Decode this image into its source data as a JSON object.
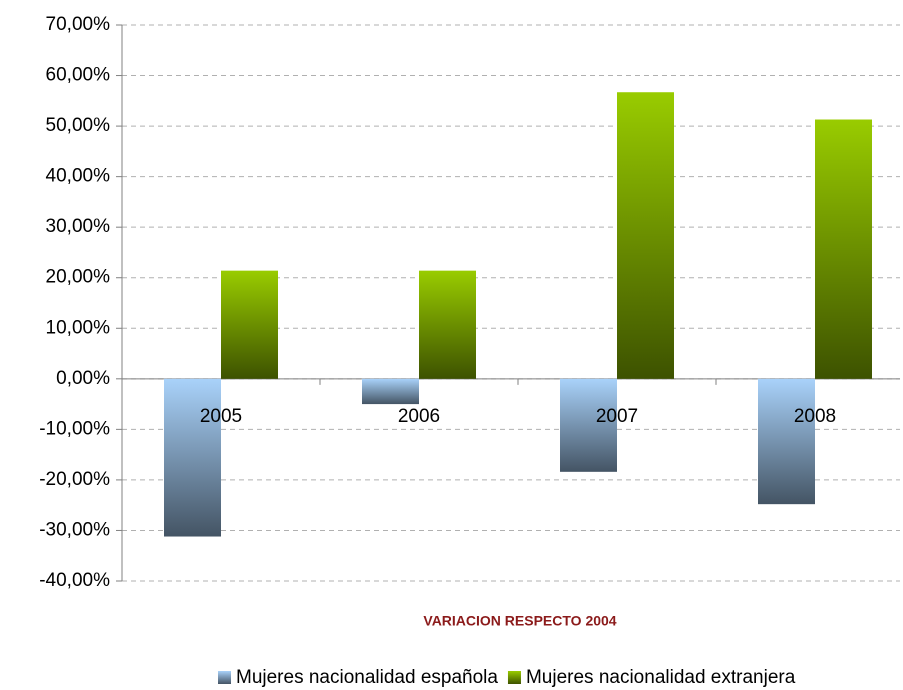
{
  "chart_data": {
    "type": "bar",
    "title": "VARIACION RESPECTO 2004",
    "categories": [
      "2005",
      "2006",
      "2007",
      "2008"
    ],
    "series": [
      {
        "name": "Mujeres nacionalidad española",
        "color": "#a9d2fa",
        "values": [
          -31.2,
          -5,
          -18.4,
          -24.8
        ]
      },
      {
        "name": "Mujeres nacionalidad extranjera",
        "color": "#99cc00",
        "values": [
          21.4,
          21.4,
          56.7,
          51.3
        ]
      }
    ],
    "ylim": [
      -40,
      70
    ],
    "yticks": [
      {
        "value": -40,
        "label": "-40,00%"
      },
      {
        "value": -30,
        "label": "-30,00%"
      },
      {
        "value": -20,
        "label": "-20,00%"
      },
      {
        "value": -10,
        "label": "-10,00%"
      },
      {
        "value": 0,
        "label": "0,00%"
      },
      {
        "value": 10,
        "label": "10,00%"
      },
      {
        "value": 20,
        "label": "20,00%"
      },
      {
        "value": 30,
        "label": "30,00%"
      },
      {
        "value": 40,
        "label": "40,00%"
      },
      {
        "value": 50,
        "label": "50,00%"
      },
      {
        "value": 60,
        "label": "60,00%"
      },
      {
        "value": 70,
        "label": "70,00%"
      }
    ],
    "grid": true,
    "legend": "bottom"
  }
}
